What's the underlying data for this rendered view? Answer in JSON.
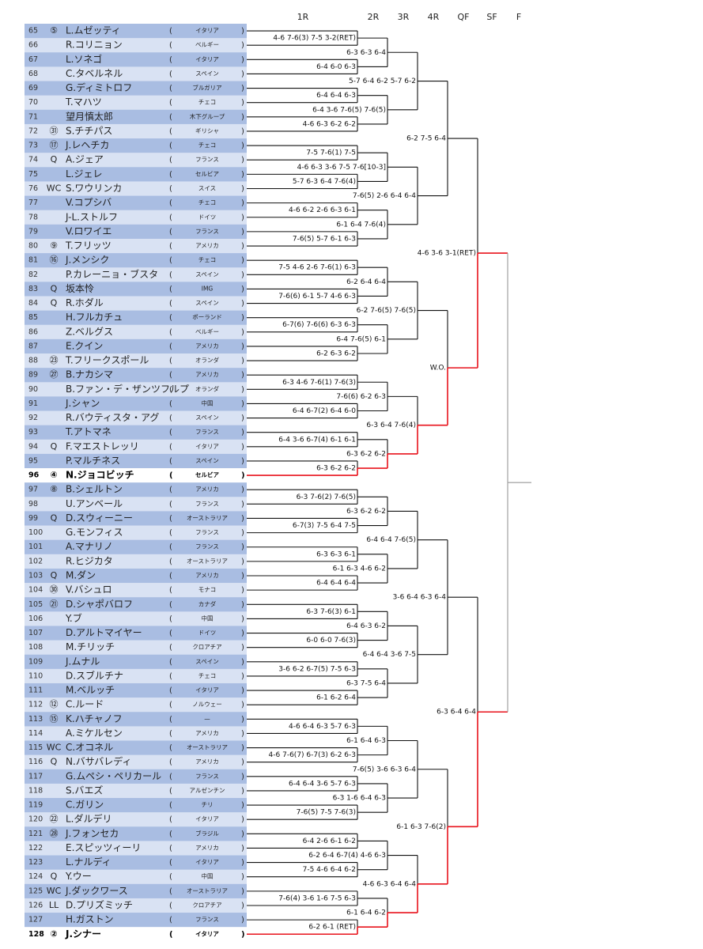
{
  "rounds": [
    "1R",
    "2R",
    "3R",
    "4R",
    "QF",
    "SF",
    "F"
  ],
  "paren": [
    "(",
    ")"
  ],
  "players": [
    {
      "no": 65,
      "seed": "⑤",
      "name": "L.ムゼッティ",
      "country": "イタリア"
    },
    {
      "no": 66,
      "name": "R.コリニョン",
      "country": "ベルギー"
    },
    {
      "no": 67,
      "name": "L.ソネゴ",
      "country": "イタリア"
    },
    {
      "no": 68,
      "name": "C.タベルネル",
      "country": "スペイン"
    },
    {
      "no": 69,
      "name": "G.ディミトロフ",
      "country": "ブルガリア"
    },
    {
      "no": 70,
      "name": "T.マハツ",
      "country": "チェコ"
    },
    {
      "no": 71,
      "name": "望月慎太郎",
      "country": "木下グループ"
    },
    {
      "no": 72,
      "seed": "㉛",
      "name": "S.チチパス",
      "country": "ギリシャ"
    },
    {
      "no": 73,
      "seed": "⑰",
      "name": "J.レヘチカ",
      "country": "チェコ"
    },
    {
      "no": 74,
      "seed": "Q",
      "name": "A.ジェア",
      "country": "フランス"
    },
    {
      "no": 75,
      "name": "L.ジェレ",
      "country": "セルビア"
    },
    {
      "no": 76,
      "seed": "WC",
      "name": "S.ワウリンカ",
      "country": "スイス"
    },
    {
      "no": 77,
      "name": "V.コプシバ",
      "country": "チェコ"
    },
    {
      "no": 78,
      "name": "J-L.ストルフ",
      "country": "ドイツ"
    },
    {
      "no": 79,
      "name": "V.ロワイエ",
      "country": "フランス"
    },
    {
      "no": 80,
      "seed": "⑨",
      "name": "T.フリッツ",
      "country": "アメリカ"
    },
    {
      "no": 81,
      "seed": "⑯",
      "name": "J.メンシク",
      "country": "チェコ"
    },
    {
      "no": 82,
      "name": "P.カレーニョ・ブスタ",
      "country": "スペイン"
    },
    {
      "no": 83,
      "seed": "Q",
      "name": "坂本怜",
      "country": "IMG"
    },
    {
      "no": 84,
      "seed": "Q",
      "name": "R.ホダル",
      "country": "スペイン"
    },
    {
      "no": 85,
      "name": "H.フルカチュ",
      "country": "ポーランド"
    },
    {
      "no": 86,
      "name": "Z.ベルグス",
      "country": "ベルギー"
    },
    {
      "no": 87,
      "name": "E.クイン",
      "country": "アメリカ"
    },
    {
      "no": 88,
      "seed": "㉓",
      "name": "T.フリークスポール",
      "country": "オランダ"
    },
    {
      "no": 89,
      "seed": "㉗",
      "name": "B.ナカシマ",
      "country": "アメリカ"
    },
    {
      "no": 90,
      "name": "B.ファン・デ・ザンツフルプ",
      "country": "オランダ"
    },
    {
      "no": 91,
      "name": "J.シャン",
      "country": "中国"
    },
    {
      "no": 92,
      "name": "R.バウティスタ・アグ",
      "country": "スペイン"
    },
    {
      "no": 93,
      "name": "T.アトマネ",
      "country": "フランス"
    },
    {
      "no": 94,
      "seed": "Q",
      "name": "F.マエストレッリ",
      "country": "イタリア"
    },
    {
      "no": 95,
      "name": "P.マルチネス",
      "country": "スペイン"
    },
    {
      "no": 96,
      "seed": "④",
      "name": "N.ジョコビッチ",
      "country": "セルビア",
      "highlight": true
    },
    {
      "no": 97,
      "seed": "⑧",
      "name": "B.シェルトン",
      "country": "アメリカ"
    },
    {
      "no": 98,
      "name": "U.アンベール",
      "country": "フランス"
    },
    {
      "no": 99,
      "seed": "Q",
      "name": "D.スウィーニー",
      "country": "オーストラリア"
    },
    {
      "no": 100,
      "name": "G.モンフィス",
      "country": "フランス"
    },
    {
      "no": 101,
      "name": "A.マナリノ",
      "country": "フランス"
    },
    {
      "no": 102,
      "name": "R.ヒジカタ",
      "country": "オーストラリア"
    },
    {
      "no": 103,
      "seed": "Q",
      "name": "M.ダン",
      "country": "アメリカ"
    },
    {
      "no": 104,
      "seed": "㉚",
      "name": "V.バシュロ",
      "country": "モナコ"
    },
    {
      "no": 105,
      "seed": "㉑",
      "name": "D.シャポバロフ",
      "country": "カナダ"
    },
    {
      "no": 106,
      "name": "Y.ブ",
      "country": "中国"
    },
    {
      "no": 107,
      "name": "D.アルトマイヤー",
      "country": "ドイツ"
    },
    {
      "no": 108,
      "name": "M.チリッチ",
      "country": "クロアチア"
    },
    {
      "no": 109,
      "name": "J.ムナル",
      "country": "スペイン"
    },
    {
      "no": 110,
      "name": "D.スブルチナ",
      "country": "チェコ"
    },
    {
      "no": 111,
      "name": "M.ベルッチ",
      "country": "イタリア"
    },
    {
      "no": 112,
      "seed": "⑫",
      "name": "C.ルード",
      "country": "ノルウェー"
    },
    {
      "no": 113,
      "seed": "⑮",
      "name": "K.ハチャノフ",
      "country": "—"
    },
    {
      "no": 114,
      "name": "A.ミケルセン",
      "country": "アメリカ"
    },
    {
      "no": 115,
      "seed": "WC",
      "name": "C.オコネル",
      "country": "オーストラリア"
    },
    {
      "no": 116,
      "seed": "Q",
      "name": "N.バサバレディ",
      "country": "アメリカ"
    },
    {
      "no": 117,
      "name": "G.ムペシ・ペリカール",
      "country": "フランス"
    },
    {
      "no": 118,
      "name": "S.バエズ",
      "country": "アルゼンチン"
    },
    {
      "no": 119,
      "name": "C.ガリン",
      "country": "チリ"
    },
    {
      "no": 120,
      "seed": "㉒",
      "name": "L.ダルデリ",
      "country": "イタリア"
    },
    {
      "no": 121,
      "seed": "㉘",
      "name": "J.フォンセカ",
      "country": "ブラジル"
    },
    {
      "no": 122,
      "name": "E.スピッツィーリ",
      "country": "アメリカ"
    },
    {
      "no": 123,
      "name": "L.ナルディ",
      "country": "イタリア"
    },
    {
      "no": 124,
      "seed": "Q",
      "name": "Y.ウー",
      "country": "中国"
    },
    {
      "no": 125,
      "seed": "WC",
      "name": "J.ダックワース",
      "country": "オーストラリア"
    },
    {
      "no": 126,
      "seed": "LL",
      "name": "D.プリズミッチ",
      "country": "クロアチア"
    },
    {
      "no": 127,
      "name": "H.ガストン",
      "country": "フランス"
    },
    {
      "no": 128,
      "seed": "②",
      "name": "J.シナー",
      "country": "イタリア",
      "highlight": true
    }
  ],
  "scores": [
    [
      "4-6 7-6(3) 7-5 3-2(RET)",
      "6-4 6-0 6-3",
      "6-4 6-4 6-3",
      "4-6 6-3 6-2 6-2",
      "7-5 7-6(1) 7-5",
      "5-7 6-3 6-4 7-6(4)",
      "4-6 6-2 2-6 6-3 6-1",
      "7-6(5) 5-7 6-1 6-3",
      "7-5 4-6 2-6 7-6(1) 6-3",
      "7-6(6) 6-1 5-7 4-6 6-3",
      "6-7(6) 7-6(6) 6-3 6-3",
      "6-2 6-3 6-2",
      "6-3 4-6 7-6(1) 7-6(3)",
      "6-4 6-7(2) 6-4 6-0",
      "6-4 3-6 6-7(4) 6-1 6-1",
      "6-3 6-2 6-2",
      "6-3 7-6(2) 7-6(5)",
      "6-7(3) 7-5 6-4 7-5",
      "6-3 6-3 6-1",
      "6-4 6-4 6-4",
      "6-3 7-6(3) 6-1",
      "6-0 6-0 7-6(3)",
      "3-6 6-2 6-7(5) 7-5 6-3",
      "6-1 6-2 6-4",
      "4-6 6-4 6-3 5-7 6-3",
      "4-6 7-6(7) 6-7(3) 6-2 6-3",
      "6-4 6-4 3-6 5-7 6-3",
      "7-6(5) 7-5 7-6(3)",
      "6-4 2-6 6-1 6-2",
      "7-5 4-6 6-4 6-2",
      "7-6(4) 3-6 1-6 7-5 6-3",
      "6-2 6-1 (RET)"
    ],
    [
      "6-3 6-3 6-4",
      "6-4 3-6 7-6(5) 7-6(5)",
      "4-6 6-3 3-6 7-5 7-6[10-3]",
      "6-1 6-4 7-6(4)",
      "6-2 6-4 6-4",
      "6-4 7-6(5) 6-1",
      "7-6(6) 6-2 6-3",
      "6-3 6-2 6-2",
      "6-3 6-2 6-2",
      "6-1 6-3 4-6 6-2",
      "6-4 6-3 6-2",
      "6-3 7-5 6-4",
      "6-1 6-4 6-3",
      "6-3 1-6 6-4 6-3",
      "6-2 6-4 6-7(4) 4-6 6-3",
      "6-1 6-4 6-2"
    ],
    [
      "5-7 6-4 6-2 5-7 6-2",
      "7-6(5) 2-6 6-4 6-4",
      "6-2 7-6(5) 7-6(5)",
      "6-3 6-4 7-6(4)",
      "6-4 6-4 7-6(5)",
      "6-4 6-4 3-6 7-5",
      "7-6(5) 3-6 6-3 6-4",
      "4-6 6-3 6-4 6-4"
    ],
    [
      "6-2 7-5 6-4",
      "W.O.",
      "3-6 6-4 6-3 6-4",
      "6-1 6-3 7-6(2)"
    ],
    [
      "4-6 3-6 3-1(RET)",
      "6-3 6-4 6-4"
    ]
  ]
}
